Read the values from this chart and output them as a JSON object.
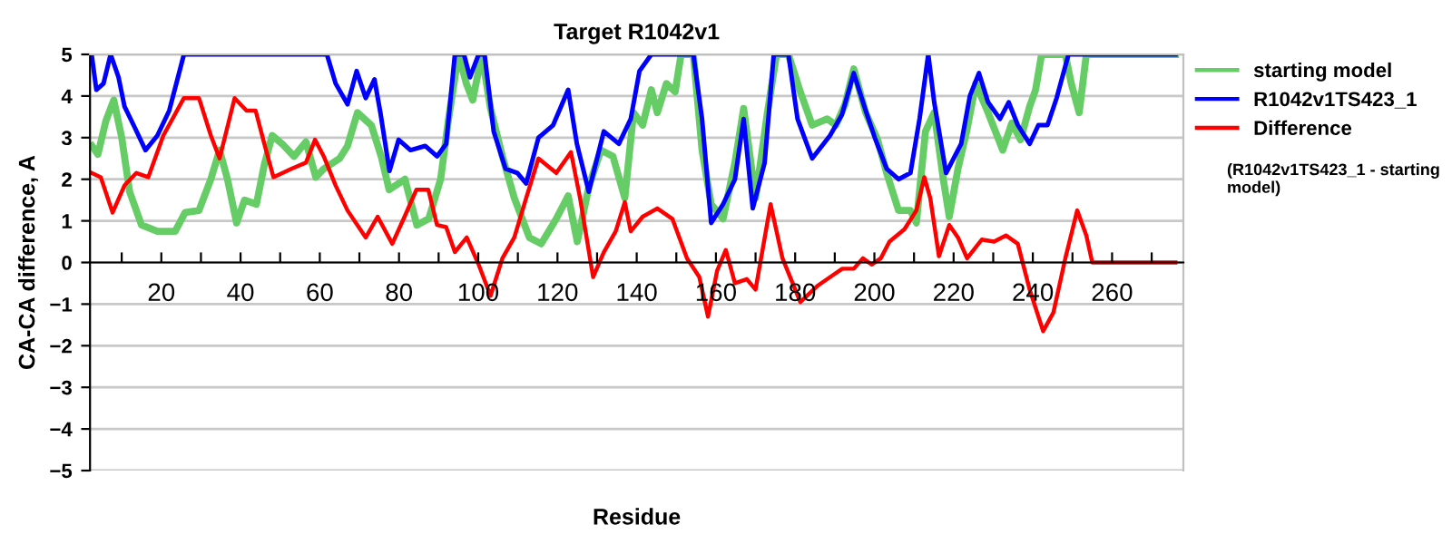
{
  "chart_data": {
    "type": "line",
    "title": "Target R1042v1",
    "xlabel": "Residue",
    "ylabel": "CA-CA difference, A",
    "xlim": [
      2,
      278
    ],
    "ylim": [
      -5,
      5
    ],
    "xticks": [
      {
        "value": 10,
        "label": null
      },
      20,
      {
        "value": 30,
        "label": null
      },
      40,
      {
        "value": 50,
        "label": null
      },
      60,
      {
        "value": 70,
        "label": null
      },
      80,
      {
        "value": 90,
        "label": null
      },
      100,
      {
        "value": 110,
        "label": null
      },
      120,
      {
        "value": 130,
        "label": null
      },
      140,
      {
        "value": 150,
        "label": null
      },
      160,
      {
        "value": 170,
        "label": null
      },
      180,
      {
        "value": 190,
        "label": null
      },
      200,
      {
        "value": 210,
        "label": null
      },
      220,
      {
        "value": 230,
        "label": null
      },
      240,
      {
        "value": 250,
        "label": null
      },
      260,
      {
        "value": 270,
        "label": null
      }
    ],
    "yticks": [
      -5,
      -4,
      -3,
      -2,
      -1,
      0,
      1,
      2,
      3,
      4,
      5
    ],
    "grid": "y",
    "legend": "right",
    "line_style": "solid",
    "annotations": [
      "(R1042v1TS423_1 - starting model)"
    ],
    "series": [
      {
        "name": "starting model",
        "color": "#66cc66",
        "x": [
          2.5,
          4,
          6,
          8,
          10,
          12,
          15,
          19,
          23.5,
          26,
          29.5,
          32.5,
          34.7,
          36.7,
          39,
          41,
          44,
          46,
          48,
          50.5,
          53.5,
          56.5,
          59,
          61,
          65,
          67,
          69.5,
          73,
          75.5,
          77.5,
          81.5,
          84.5,
          87.5,
          90.5,
          92.5,
          95,
          97,
          98.6,
          100.9,
          103.1,
          106.1,
          109.1,
          112.9,
          115.9,
          119.7,
          122.7,
          125,
          128,
          131,
          134,
          137,
          139.2,
          141.5,
          143.7,
          145.2,
          147.5,
          149.7,
          151.2,
          154.3,
          156.5,
          158.8,
          161.8,
          164.8,
          167,
          170,
          173,
          175.3,
          178.3,
          181.3,
          184.3,
          188.1,
          190.3,
          192.6,
          194.8,
          197.8,
          200.8,
          203.1,
          206.1,
          209.1,
          210.6,
          212.9,
          215.1,
          217.4,
          218.9,
          221.1,
          223.4,
          225.6,
          228.7,
          232.4,
          234.7,
          236.9,
          239.2,
          240.7,
          242.2,
          248.2,
          249.7,
          251.7,
          253.5,
          276
        ],
        "values": [
          2.8,
          2.6,
          3.4,
          3.9,
          3.0,
          1.7,
          0.9,
          0.75,
          0.75,
          1.2,
          1.25,
          2.0,
          2.7,
          2.0,
          0.95,
          1.5,
          1.4,
          2.35,
          3.05,
          2.85,
          2.55,
          2.9,
          2.05,
          2.25,
          2.5,
          2.8,
          3.6,
          3.3,
          2.55,
          1.75,
          2.0,
          0.9,
          1.05,
          2.0,
          3.45,
          5,
          4.3,
          3.9,
          5,
          3.7,
          2.55,
          1.55,
          0.6,
          0.45,
          1.05,
          1.6,
          0.5,
          1.85,
          2.7,
          2.55,
          1.55,
          3.6,
          3.3,
          4.15,
          3.6,
          4.3,
          4.1,
          5,
          5,
          2.7,
          1.4,
          1.05,
          2.4,
          3.7,
          1.55,
          3.6,
          5,
          5,
          4.1,
          3.3,
          3.45,
          3.3,
          3.8,
          4.65,
          3.6,
          2.95,
          2.15,
          1.25,
          1.25,
          0.95,
          3.15,
          3.6,
          2.0,
          1.1,
          2.25,
          3.2,
          4.3,
          3.6,
          2.7,
          3.35,
          2.95,
          3.75,
          4.15,
          5,
          5,
          4.3,
          3.6,
          5,
          5
        ]
      },
      {
        "name": "R1042v1TS423_1",
        "color": "#0000ff",
        "x": [
          2.4,
          3.6,
          5.4,
          7.2,
          9.2,
          10.7,
          13,
          16,
          19,
          22,
          24.2,
          25.7,
          61.8,
          64,
          67,
          69.3,
          71.6,
          73.8,
          75.3,
          77.6,
          79.9,
          82.9,
          86.6,
          89.6,
          91.9,
          94.1,
          96.4,
          97.9,
          100.1,
          101.6,
          103.9,
          106.9,
          109.9,
          112.1,
          115.2,
          118.9,
          122.7,
          124.9,
          127.9,
          131.7,
          135.5,
          138.5,
          140.7,
          143.7,
          154.3,
          156.5,
          158.8,
          161.8,
          164.8,
          167,
          169.3,
          172.3,
          174.6,
          178.3,
          180.6,
          184.3,
          188.8,
          191.8,
          194.8,
          197.8,
          200.1,
          203.1,
          206.1,
          209.1,
          211.4,
          213.6,
          215.1,
          218.1,
          221.9,
          224.1,
          226.4,
          228.7,
          231.7,
          233.9,
          236.2,
          239.2,
          241.4,
          243.7,
          246,
          249,
          276
        ],
        "values": [
          5,
          4.15,
          4.3,
          5,
          4.45,
          3.75,
          3.3,
          2.7,
          3.05,
          3.65,
          4.45,
          5,
          5,
          4.3,
          3.8,
          4.6,
          3.95,
          4.4,
          3.6,
          2.2,
          2.95,
          2.7,
          2.8,
          2.55,
          2.85,
          5,
          5,
          4.45,
          5,
          5,
          3.15,
          2.25,
          2.15,
          1.9,
          3.0,
          3.3,
          4.15,
          2.85,
          1.7,
          3.15,
          2.85,
          3.45,
          4.6,
          5,
          5,
          3.45,
          0.95,
          1.4,
          2.0,
          3.45,
          1.3,
          2.4,
          5,
          5,
          3.45,
          2.5,
          3.05,
          3.55,
          4.55,
          3.65,
          3.0,
          2.25,
          2.0,
          2.15,
          3.45,
          5,
          3.85,
          2.15,
          2.85,
          4.0,
          4.55,
          3.85,
          3.45,
          3.85,
          3.3,
          2.85,
          3.3,
          3.3,
          3.95,
          5,
          5
        ]
      },
      {
        "name": "Difference",
        "color": "#ff0000",
        "x": [
          2.4,
          4.7,
          7.7,
          10.7,
          13.7,
          16.7,
          20.5,
          25.7,
          29.5,
          32.5,
          34.7,
          38.5,
          41.5,
          43.8,
          46,
          48.3,
          52.8,
          56.5,
          58.8,
          61,
          64,
          67,
          71.6,
          74.6,
          78.3,
          81.4,
          84.4,
          87.4,
          89.6,
          91.9,
          94.1,
          97.1,
          100.1,
          103.1,
          106.1,
          109.1,
          112.1,
          115.2,
          119.7,
          123.4,
          125.7,
          129,
          131.7,
          134.7,
          137,
          138.5,
          141.5,
          145.2,
          149,
          152.7,
          155.8,
          158,
          160.3,
          162.5,
          164.8,
          167.8,
          170,
          173.8,
          176.8,
          181.3,
          185.8,
          189.6,
          191.9,
          194.8,
          197.1,
          199.3,
          201.6,
          203.8,
          207.6,
          210.6,
          212.6,
          214.1,
          216.3,
          218.9,
          221.1,
          223.4,
          227.1,
          230.2,
          233.2,
          236.2,
          239.2,
          242.6,
          245.2,
          248.2,
          251.2,
          253.5,
          255,
          276
        ],
        "values": [
          2.15,
          2.05,
          1.2,
          1.85,
          2.15,
          2.05,
          3.05,
          3.95,
          3.95,
          3.05,
          2.5,
          3.95,
          3.65,
          3.65,
          2.85,
          2.05,
          2.25,
          2.4,
          2.95,
          2.55,
          1.85,
          1.25,
          0.6,
          1.1,
          0.45,
          1.1,
          1.75,
          1.75,
          0.9,
          0.85,
          0.25,
          0.6,
          -0.05,
          -0.8,
          0.1,
          0.6,
          1.55,
          2.5,
          2.15,
          2.65,
          1.55,
          -0.35,
          0.25,
          0.75,
          1.45,
          0.75,
          1.1,
          1.3,
          1.05,
          0.1,
          -0.35,
          -1.3,
          -0.2,
          0.3,
          -0.5,
          -0.4,
          -0.65,
          1.4,
          0.1,
          -0.95,
          -0.55,
          -0.3,
          -0.15,
          -0.15,
          0.1,
          -0.05,
          0.1,
          0.5,
          0.8,
          1.25,
          2.05,
          1.55,
          0.15,
          0.9,
          0.6,
          0.1,
          0.55,
          0.5,
          0.65,
          0.45,
          -0.65,
          -1.65,
          -1.2,
          0.1,
          1.25,
          0.65,
          0,
          0
        ]
      }
    ]
  }
}
